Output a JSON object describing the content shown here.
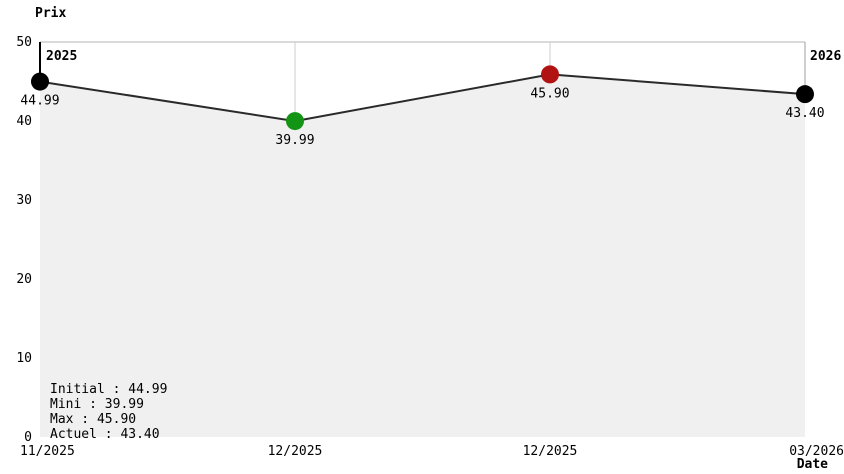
{
  "chart_data": {
    "type": "line",
    "title": "",
    "ylabel": "Prix",
    "xlabel": "Date",
    "ylim": [
      0,
      50
    ],
    "y_ticks": [
      50,
      40,
      30,
      20,
      10,
      0
    ],
    "x_tick_labels": [
      "11/2025",
      "12/2025",
      "12/2025",
      "03/2026"
    ],
    "year_markers": [
      {
        "label": "2025",
        "position": "start"
      },
      {
        "label": "2026",
        "position": "end"
      }
    ],
    "series": [
      {
        "name": "Prix",
        "points": [
          {
            "x": "11/2025",
            "y": 44.99,
            "label": "44.99",
            "color": "#000000",
            "role": "initial"
          },
          {
            "x": "12/2025",
            "y": 39.99,
            "label": "39.99",
            "color": "#149414",
            "role": "minimum"
          },
          {
            "x": "12/2025",
            "y": 45.9,
            "label": "45.90",
            "color": "#b11212",
            "role": "maximum"
          },
          {
            "x": "03/2026",
            "y": 43.4,
            "label": "43.40",
            "color": "#000000",
            "role": "current"
          }
        ]
      }
    ],
    "legend": {
      "position": "bottom-left-inside",
      "separator": " : ",
      "entries": [
        {
          "label": "Initial",
          "value": "44.99",
          "color": "#000000"
        },
        {
          "label": "Mini",
          "value": "39.99",
          "color": "#149414"
        },
        {
          "label": "Max",
          "value": "45.90",
          "color": "#b11212"
        },
        {
          "label": "Actuel",
          "value": "43.40",
          "color": "#000000"
        }
      ]
    },
    "colors": {
      "line": "#2a2a2a",
      "area_fill": "#f0f0f0",
      "grid": "#cccccc",
      "top_border": "#b4b4b4",
      "year_start_line": "#000000",
      "year_end_line": "#9e9e9e"
    },
    "grid": "vertical-partial",
    "legend_on": true
  }
}
